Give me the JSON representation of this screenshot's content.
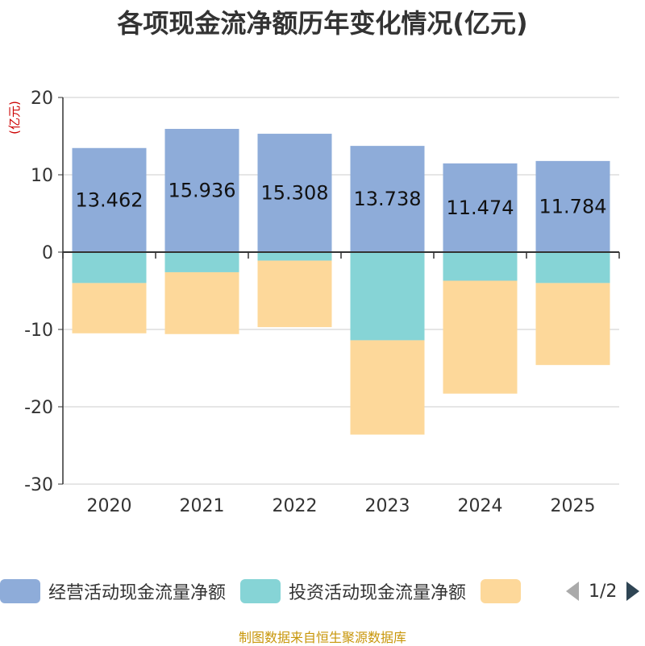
{
  "chart_data": {
    "type": "bar",
    "stacked": true,
    "title": "各项现金流净额历年变化情况(亿元)",
    "ylabel": "(亿元)",
    "xlabel": "",
    "categories": [
      "2020",
      "2021",
      "2022",
      "2023",
      "2024",
      "2025"
    ],
    "ylim": [
      -30,
      20
    ],
    "yticks": [
      -30,
      -20,
      -10,
      0,
      10,
      20
    ],
    "grid": true,
    "series": [
      {
        "name": "经营活动现金流量净额",
        "color": "#8eacd9",
        "values": [
          13.462,
          15.936,
          15.308,
          13.738,
          11.474,
          11.784
        ],
        "labels": [
          "13.462",
          "15.936",
          "15.308",
          "13.738",
          "11.474",
          "11.784"
        ]
      },
      {
        "name": "投资活动现金流量净额",
        "color": "#86d4d6",
        "values": [
          -4.0,
          -2.6,
          -1.1,
          -11.4,
          -3.7,
          -4.0
        ]
      },
      {
        "name": "",
        "color": "#fdd89a",
        "values": [
          -6.5,
          -8.0,
          -8.6,
          -12.2,
          -14.6,
          -10.6
        ]
      }
    ],
    "legend_position": "bottom"
  },
  "legend": {
    "items": [
      {
        "label": "经营活动现金流量净额",
        "color": "#8eacd9"
      },
      {
        "label": "投资活动现金流量净额",
        "color": "#86d4d6"
      },
      {
        "label": "",
        "color": "#fdd89a"
      }
    ],
    "page_text": "1/2"
  },
  "source_text": "制图数据来自恒生聚源数据库",
  "colors": {
    "axis": "#333333",
    "grid": "#cccccc",
    "ylabel": "#cc0000",
    "pager_prev": "#aaaaaa",
    "pager_next": "#2f4554"
  }
}
